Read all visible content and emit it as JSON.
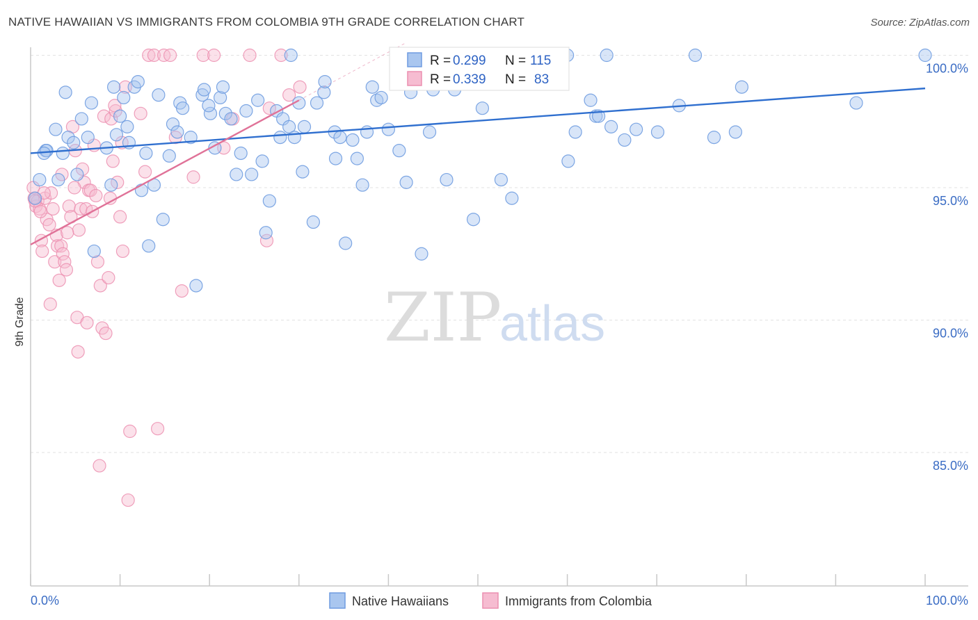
{
  "title": "NATIVE HAWAIIAN VS IMMIGRANTS FROM COLOMBIA 9TH GRADE CORRELATION CHART",
  "source": "Source: ZipAtlas.com",
  "watermark": {
    "zip": "ZIP",
    "atlas": "atlas"
  },
  "colors": {
    "blue": "#6f9ce0",
    "blue_fill": "#a9c6ef",
    "blue_line": "#2f6fcf",
    "pink": "#ec8fb0",
    "pink_fill": "#f6bcd1",
    "pink_line": "#e07298",
    "tick_text": "#3a6cc4"
  },
  "legend_top": [
    {
      "r_label": "R =",
      "r_value": "0.299",
      "n_label": "N =",
      "n_value": "115"
    },
    {
      "r_label": "R =",
      "r_value": "0.339",
      "n_label": "N =",
      "n_value": "83"
    }
  ],
  "chart_data": {
    "type": "scatter",
    "title": "NATIVE HAWAIIAN VS IMMIGRANTS FROM COLOMBIA 9TH GRADE CORRELATION CHART",
    "xlabel": "",
    "ylabel": "9th Grade",
    "xlim": [
      0,
      100
    ],
    "ylim": [
      80.5,
      100.8
    ],
    "x_tick_labels": [
      "0.0%",
      "100.0%"
    ],
    "y_ticks": [
      85,
      90,
      95,
      100
    ],
    "y_tick_labels": [
      "85.0%",
      "90.0%",
      "95.0%",
      "100.0%"
    ],
    "grid": true,
    "legend_position": "bottom-center",
    "series": [
      {
        "name": "Native Hawaiians",
        "color": "blue",
        "R": 0.299,
        "N": 115,
        "trend": {
          "x": [
            0,
            100
          ],
          "y": [
            96.3,
            98.75
          ]
        },
        "points": [
          [
            1.7,
            96.4
          ],
          [
            1.8,
            96.4
          ],
          [
            1.5,
            96.3
          ],
          [
            2.8,
            97.2
          ],
          [
            3.9,
            98.6
          ],
          [
            3.6,
            96.3
          ],
          [
            4.2,
            96.9
          ],
          [
            4.8,
            96.7
          ],
          [
            5.2,
            95.5
          ],
          [
            5.7,
            97.6
          ],
          [
            6.4,
            96.9
          ],
          [
            6.8,
            98.2
          ],
          [
            7.1,
            92.6
          ],
          [
            8.5,
            96.5
          ],
          [
            9.0,
            95.1
          ],
          [
            9.3,
            98.8
          ],
          [
            10.0,
            97.7
          ],
          [
            10.4,
            98.4
          ],
          [
            10.8,
            97.3
          ],
          [
            11.6,
            98.8
          ],
          [
            12.0,
            99.0
          ],
          [
            12.4,
            94.9
          ],
          [
            12.9,
            96.3
          ],
          [
            13.8,
            95.1
          ],
          [
            13.2,
            92.8
          ],
          [
            14.3,
            98.5
          ],
          [
            14.8,
            93.8
          ],
          [
            15.5,
            96.2
          ],
          [
            15.9,
            97.4
          ],
          [
            16.4,
            97.1
          ],
          [
            16.7,
            98.2
          ],
          [
            17.0,
            98.0
          ],
          [
            17.9,
            96.9
          ],
          [
            18.5,
            91.3
          ],
          [
            19.2,
            98.5
          ],
          [
            19.4,
            98.7
          ],
          [
            20.1,
            97.8
          ],
          [
            20.6,
            96.5
          ],
          [
            21.2,
            98.4
          ],
          [
            21.5,
            98.8
          ],
          [
            21.8,
            97.8
          ],
          [
            22.4,
            97.6
          ],
          [
            23.0,
            95.5
          ],
          [
            23.5,
            96.3
          ],
          [
            24.1,
            97.9
          ],
          [
            24.7,
            95.5
          ],
          [
            25.4,
            98.3
          ],
          [
            25.9,
            96.0
          ],
          [
            26.3,
            93.3
          ],
          [
            26.7,
            94.5
          ],
          [
            27.5,
            97.9
          ],
          [
            27.9,
            96.9
          ],
          [
            28.2,
            97.6
          ],
          [
            28.9,
            97.3
          ],
          [
            29.5,
            96.9
          ],
          [
            30.0,
            98.2
          ],
          [
            30.4,
            95.6
          ],
          [
            30.6,
            97.3
          ],
          [
            31.6,
            93.7
          ],
          [
            32.0,
            98.2
          ],
          [
            32.8,
            98.6
          ],
          [
            32.9,
            99.0
          ],
          [
            34.1,
            96.1
          ],
          [
            34.0,
            97.1
          ],
          [
            34.6,
            96.9
          ],
          [
            35.2,
            92.9
          ],
          [
            36.0,
            96.8
          ],
          [
            36.5,
            96.1
          ],
          [
            37.1,
            95.1
          ],
          [
            37.6,
            97.1
          ],
          [
            38.2,
            98.8
          ],
          [
            38.7,
            98.3
          ],
          [
            39.2,
            98.4
          ],
          [
            40.0,
            97.2
          ],
          [
            41.2,
            96.4
          ],
          [
            42.0,
            95.2
          ],
          [
            42.5,
            98.6
          ],
          [
            41.7,
            100.0
          ],
          [
            43.7,
            92.5
          ],
          [
            44.6,
            97.1
          ],
          [
            45.0,
            98.7
          ],
          [
            46.5,
            95.3
          ],
          [
            47.5,
            100.0
          ],
          [
            49.1,
            99.0
          ],
          [
            49.5,
            93.8
          ],
          [
            50.5,
            98.0
          ],
          [
            52.6,
            95.3
          ],
          [
            53.8,
            94.6
          ],
          [
            58.6,
            100.0
          ],
          [
            60.0,
            100.0
          ],
          [
            60.1,
            96.0
          ],
          [
            60.9,
            97.1
          ],
          [
            62.6,
            98.3
          ],
          [
            63.2,
            97.7
          ],
          [
            63.5,
            97.7
          ],
          [
            64.4,
            100.0
          ],
          [
            64.9,
            97.3
          ],
          [
            66.4,
            96.8
          ],
          [
            67.7,
            97.2
          ],
          [
            70.1,
            97.1
          ],
          [
            72.5,
            98.1
          ],
          [
            74.3,
            100.0
          ],
          [
            76.4,
            96.9
          ],
          [
            78.8,
            97.1
          ],
          [
            79.5,
            98.8
          ],
          [
            92.3,
            98.2
          ],
          [
            100.0,
            100.0
          ],
          [
            0.5,
            94.6
          ],
          [
            1.0,
            95.3
          ],
          [
            3.1,
            95.3
          ],
          [
            9.6,
            97.0
          ],
          [
            11.0,
            96.7
          ],
          [
            19.9,
            98.1
          ],
          [
            29.1,
            100.0
          ],
          [
            47.4,
            98.7
          ]
        ]
      },
      {
        "name": "Immigrants from Colombia",
        "color": "pink",
        "R": 0.339,
        "N": 83,
        "trend": {
          "x": [
            0,
            30
          ],
          "y": [
            92.85,
            98.3
          ]
        },
        "points": [
          [
            0.4,
            94.6
          ],
          [
            0.6,
            94.3
          ],
          [
            0.8,
            94.5
          ],
          [
            1.0,
            94.2
          ],
          [
            1.2,
            93.0
          ],
          [
            1.3,
            92.6
          ],
          [
            1.6,
            94.6
          ],
          [
            1.8,
            93.8
          ],
          [
            2.1,
            93.6
          ],
          [
            2.3,
            94.8
          ],
          [
            2.5,
            94.2
          ],
          [
            2.7,
            92.2
          ],
          [
            2.9,
            93.2
          ],
          [
            3.0,
            92.8
          ],
          [
            3.2,
            91.5
          ],
          [
            3.4,
            92.8
          ],
          [
            3.6,
            92.5
          ],
          [
            3.8,
            92.2
          ],
          [
            4.0,
            91.9
          ],
          [
            4.3,
            94.3
          ],
          [
            4.5,
            93.9
          ],
          [
            4.7,
            97.3
          ],
          [
            5.0,
            96.4
          ],
          [
            5.2,
            90.1
          ],
          [
            5.4,
            93.4
          ],
          [
            5.6,
            94.2
          ],
          [
            5.8,
            95.7
          ],
          [
            6.0,
            95.2
          ],
          [
            6.2,
            94.2
          ],
          [
            6.5,
            94.9
          ],
          [
            6.7,
            94.9
          ],
          [
            6.9,
            94.1
          ],
          [
            7.1,
            96.6
          ],
          [
            7.3,
            94.7
          ],
          [
            7.5,
            92.2
          ],
          [
            7.8,
            91.3
          ],
          [
            8.0,
            89.7
          ],
          [
            8.2,
            97.7
          ],
          [
            8.4,
            89.5
          ],
          [
            8.7,
            91.6
          ],
          [
            9.0,
            97.6
          ],
          [
            9.2,
            96.0
          ],
          [
            9.5,
            97.9
          ],
          [
            9.7,
            95.2
          ],
          [
            10.0,
            93.9
          ],
          [
            10.3,
            92.6
          ],
          [
            10.6,
            98.8
          ],
          [
            10.9,
            83.2
          ],
          [
            11.1,
            85.8
          ],
          [
            12.3,
            97.8
          ],
          [
            12.8,
            95.6
          ],
          [
            13.2,
            100.0
          ],
          [
            13.8,
            100.0
          ],
          [
            14.2,
            85.9
          ],
          [
            14.9,
            100.0
          ],
          [
            15.6,
            100.0
          ],
          [
            16.2,
            96.9
          ],
          [
            16.9,
            91.1
          ],
          [
            18.2,
            95.4
          ],
          [
            19.3,
            100.0
          ],
          [
            20.5,
            100.0
          ],
          [
            21.6,
            96.5
          ],
          [
            22.6,
            97.6
          ],
          [
            24.5,
            100.0
          ],
          [
            26.4,
            93.0
          ],
          [
            26.7,
            98.0
          ],
          [
            28.0,
            100.0
          ],
          [
            28.9,
            98.5
          ],
          [
            30.1,
            98.8
          ],
          [
            0.3,
            95.0
          ],
          [
            0.5,
            94.5
          ],
          [
            1.1,
            94.1
          ],
          [
            1.5,
            94.8
          ],
          [
            2.2,
            90.6
          ],
          [
            3.5,
            95.5
          ],
          [
            4.1,
            93.3
          ],
          [
            5.3,
            88.8
          ],
          [
            7.7,
            84.5
          ],
          [
            9.4,
            98.1
          ],
          [
            10.2,
            96.7
          ],
          [
            4.9,
            95.0
          ],
          [
            8.9,
            94.6
          ],
          [
            6.3,
            89.9
          ]
        ]
      }
    ]
  },
  "legend_bottom": [
    {
      "label": "Native Hawaiians"
    },
    {
      "label": "Immigrants from Colombia"
    }
  ]
}
